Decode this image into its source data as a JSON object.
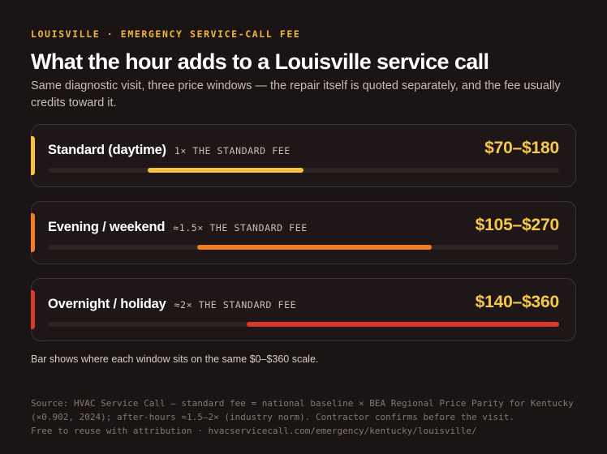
{
  "header": {
    "eyebrow": "LOUISVILLE · EMERGENCY SERVICE-CALL FEE",
    "title": "What the hour adds to a Louisville service call",
    "subtitle": "Same diagnostic visit, three price windows — the repair itself is quoted separately, and the fee usually credits toward it."
  },
  "chart_data": {
    "type": "bar",
    "orientation": "horizontal-range",
    "scale": {
      "min": 0,
      "max": 360,
      "unit": "$"
    },
    "categories": [
      "Standard (daytime)",
      "Evening / weekend",
      "Overnight / holiday"
    ],
    "series": [
      {
        "label": "Standard (daytime)",
        "multiplier": "1× THE STANDARD FEE",
        "price_text": "$70–$180",
        "min": 70,
        "max": 180,
        "color": "#f7c33b"
      },
      {
        "label": "Evening / weekend",
        "multiplier": "≈1.5× THE STANDARD FEE",
        "price_text": "$105–$270",
        "min": 105,
        "max": 270,
        "color": "#f07d1f"
      },
      {
        "label": "Overnight / holiday",
        "multiplier": "≈2× THE STANDARD FEE",
        "price_text": "$140–$360",
        "min": 140,
        "max": 360,
        "color": "#d93a2b"
      }
    ],
    "legend": "Bar shows where each window sits on the same $0–$360 scale."
  },
  "footer": {
    "source_line1": "Source: HVAC Service Call — standard fee = national baseline × BEA Regional Price Parity for Kentucky",
    "source_line2": "(×0.902, 2024); after-hours ≈1.5–2× (industry norm). Contractor confirms before the visit.",
    "source_line3": "Free to reuse with attribution · hvacservicecall.com/emergency/kentucky/louisville/"
  }
}
